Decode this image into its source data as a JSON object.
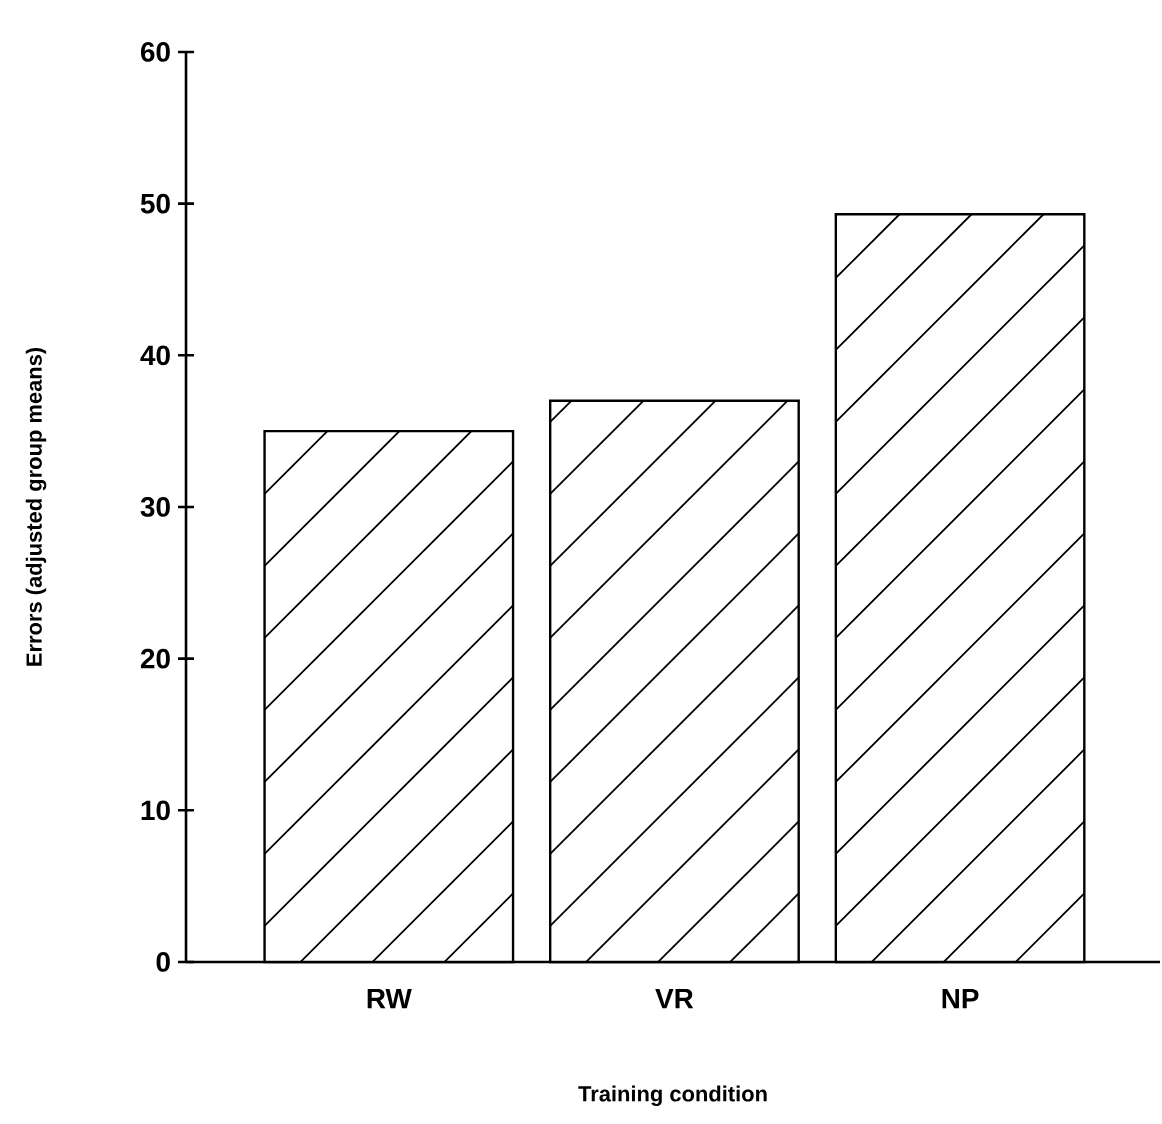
{
  "chart_data": {
    "type": "bar",
    "xlabel": "Training condition",
    "ylabel": "Errors (adjusted group means)",
    "categories": [
      "RW",
      "VR",
      "NP"
    ],
    "values": [
      35,
      37,
      49.3
    ],
    "color": "#000000",
    "ylim": [
      0,
      60
    ],
    "yticks": [
      0,
      10,
      20,
      30,
      40,
      50,
      60
    ],
    "grid": false
  }
}
